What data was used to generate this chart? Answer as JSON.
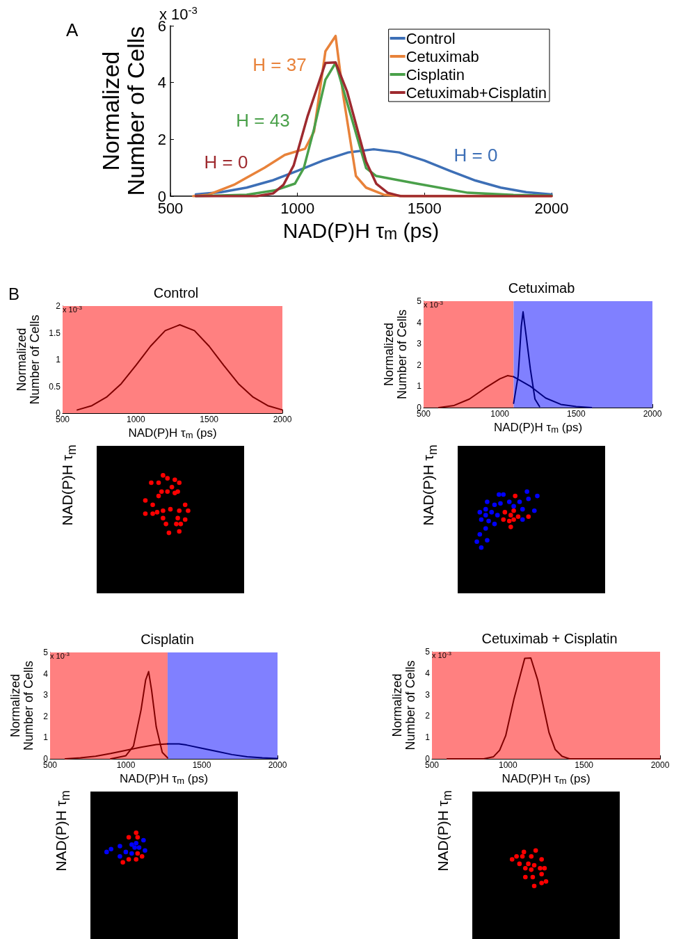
{
  "chart_data": [
    {
      "type": "line",
      "xlabel": "NAD(P)H τ$_{m}$ (ps)",
      "ylabel": "Normalized\nNumber of Cells",
      "xlim": [
        500,
        2000
      ],
      "xticks": [
        500,
        1000,
        1500,
        2000
      ],
      "ylim": [
        0,
        6
      ],
      "yticks": [
        0,
        2,
        4,
        6
      ],
      "legend": "top right",
      "annotations": [
        "A",
        "x 10$^{-3}$",
        "H = 0",
        "H = 37",
        "H = 43",
        "H = 0"
      ],
      "series": [
        {
          "name": "Control",
          "color": "#3d6fb6",
          "x": [
            600,
            700,
            800,
            900,
            1000,
            1100,
            1200,
            1300,
            1400,
            1500,
            1600,
            1700,
            1800,
            1900,
            2000
          ],
          "values": [
            0.06,
            0.14,
            0.3,
            0.55,
            0.89,
            1.25,
            1.54,
            1.65,
            1.54,
            1.25,
            0.89,
            0.55,
            0.3,
            0.14,
            0.06
          ]
        },
        {
          "name": "Cetuximab",
          "color": "#e8823a",
          "x": [
            590,
            650,
            750,
            870,
            950,
            1030,
            1065,
            1110,
            1150,
            1180,
            1230,
            1270,
            1340,
            1420,
            2000
          ],
          "values": [
            0,
            0.05,
            0.4,
            1.0,
            1.45,
            1.67,
            2.27,
            5.1,
            5.64,
            3.55,
            0.71,
            0.3,
            0.05,
            0,
            0
          ]
        },
        {
          "name": "Cisplatin",
          "color": "#4aa04a",
          "x": [
            600,
            800,
            910,
            990,
            1025,
            1065,
            1110,
            1150,
            1190,
            1270,
            1310,
            1470,
            1670,
            1850,
            2000
          ],
          "values": [
            0,
            0.05,
            0.2,
            0.44,
            0.99,
            2.36,
            4.1,
            4.69,
            3.46,
            0.99,
            0.71,
            0.44,
            0.12,
            0.04,
            0.02
          ]
        },
        {
          "name": "Cetuximab+Cisplatin",
          "color": "#9e2a2f",
          "x": [
            600,
            840,
            905,
            945,
            985,
            1040,
            1110,
            1150,
            1195,
            1270,
            1310,
            1355,
            1405,
            2000
          ],
          "values": [
            0,
            0,
            0.1,
            0.4,
            1.08,
            2.82,
            4.69,
            4.71,
            3.69,
            1.22,
            0.44,
            0.12,
            0,
            0
          ]
        }
      ]
    },
    {
      "type": "line",
      "title": "Control",
      "xlabel": "NAD(P)H τ$_{m}$ (ps)",
      "ylabel": "Normalized\nNumber of Cells",
      "xlim": [
        500,
        2000
      ],
      "xticks": [
        500,
        1000,
        1500,
        2000
      ],
      "ylim": [
        0,
        2
      ],
      "yticks": [
        0,
        0.5,
        1,
        1.5,
        2
      ],
      "annotations": [
        "B",
        "x 10$^{-3}$"
      ],
      "bands": [
        {
          "axis": "x",
          "from": 500,
          "to": 2000,
          "color": "#ff8080"
        }
      ],
      "series": [
        {
          "color": "#800000",
          "x": [
            600,
            700,
            800,
            900,
            1000,
            1100,
            1200,
            1300,
            1400,
            1500,
            1600,
            1700,
            1800,
            1900,
            2000
          ],
          "values": [
            0.06,
            0.14,
            0.3,
            0.55,
            0.89,
            1.25,
            1.54,
            1.65,
            1.54,
            1.25,
            0.89,
            0.55,
            0.3,
            0.14,
            0.06
          ]
        }
      ]
    },
    {
      "type": "other",
      "ylabel": "NAD(P)H τ$_{m}$"
    },
    {
      "type": "line",
      "title": "Cetuximab",
      "xlabel": "NAD(P)H τ$_{m}$ (ps)",
      "ylabel": "Normalized\nNumber of Cells",
      "xlim": [
        500,
        2000
      ],
      "xticks": [
        500,
        1000,
        1500,
        2000
      ],
      "ylim": [
        0,
        5
      ],
      "yticks": [
        0,
        1,
        2,
        3,
        4,
        5
      ],
      "annotations": [
        "x 10$^{-3}$"
      ],
      "bands": [
        {
          "axis": "x",
          "from": 500,
          "to": 1090,
          "color": "#ff8080"
        },
        {
          "axis": "x",
          "from": 1090,
          "to": 2000,
          "color": "#8080ff"
        }
      ],
      "series": [
        {
          "color": "#800000",
          "x": [
            600,
            700,
            800,
            900,
            1000,
            1050,
            1090
          ],
          "values": [
            0,
            0.1,
            0.4,
            0.9,
            1.35,
            1.5,
            1.45
          ]
        },
        {
          "color": "#000080",
          "x": [
            1090,
            1200,
            1300,
            1400,
            1500,
            1600
          ],
          "values": [
            1.45,
            1.0,
            0.45,
            0.15,
            0.05,
            0
          ]
        },
        {
          "color": "#000080",
          "x": [
            1090,
            1120,
            1140,
            1152,
            1170,
            1200,
            1230,
            1260
          ],
          "values": [
            0.2,
            1.5,
            3.8,
            4.5,
            3.5,
            1.8,
            0.4,
            0.05
          ]
        }
      ]
    },
    {
      "type": "other",
      "ylabel": "NAD(P)H τ$_{m}$"
    },
    {
      "type": "line",
      "title": "Cisplatin",
      "xlabel": "NAD(P)H τ$_{m}$ (ps)",
      "ylabel": "Normalized\nNumber of Cells",
      "xlim": [
        500,
        2000
      ],
      "xticks": [
        500,
        1000,
        1500,
        2000
      ],
      "ylim": [
        0,
        5
      ],
      "yticks": [
        0,
        1,
        2,
        3,
        4,
        5
      ],
      "annotations": [
        "x 10$^{-3}$"
      ],
      "bands": [
        {
          "axis": "x",
          "from": 500,
          "to": 1275,
          "color": "#ff8080"
        },
        {
          "axis": "x",
          "from": 1275,
          "to": 2000,
          "color": "#8080ff"
        }
      ],
      "series": [
        {
          "color": "#800000",
          "x": [
            900,
            1000,
            1050,
            1100,
            1130,
            1150,
            1170,
            1200,
            1240,
            1275
          ],
          "values": [
            0,
            0.15,
            0.6,
            2.3,
            3.7,
            4.1,
            3.2,
            1.5,
            0.3,
            0.05
          ]
        },
        {
          "color": "#800000",
          "x": [
            600,
            700,
            800,
            900,
            1000,
            1100,
            1200,
            1275
          ],
          "values": [
            0,
            0.05,
            0.12,
            0.25,
            0.4,
            0.55,
            0.67,
            0.7
          ]
        },
        {
          "color": "#000080",
          "x": [
            1275,
            1350,
            1400,
            1500,
            1600,
            1700,
            1800,
            1900,
            2000
          ],
          "values": [
            0.7,
            0.7,
            0.65,
            0.5,
            0.35,
            0.2,
            0.1,
            0.05,
            0.02
          ]
        }
      ]
    },
    {
      "type": "other",
      "ylabel": "NAD(P)H τ$_{m}$"
    },
    {
      "type": "line",
      "title": "Cetuximab + Cisplatin",
      "xlabel": "NAD(P)H τ$_{m}$ (ps)",
      "ylabel": "Normalized\nNumber of Cells",
      "xlim": [
        500,
        2000
      ],
      "xticks": [
        500,
        1000,
        1500,
        2000
      ],
      "ylim": [
        0,
        5
      ],
      "yticks": [
        0,
        1,
        2,
        3,
        4,
        5
      ],
      "annotations": [
        "x 10$^{-3}$"
      ],
      "bands": [
        {
          "axis": "x",
          "from": 500,
          "to": 2000,
          "color": "#ff8080"
        }
      ],
      "series": [
        {
          "color": "#800000",
          "x": [
            600,
            840,
            905,
            945,
            985,
            1040,
            1110,
            1150,
            1195,
            1270,
            1310,
            1355,
            1405,
            2000
          ],
          "values": [
            0,
            0,
            0.1,
            0.4,
            1.08,
            2.82,
            4.69,
            4.71,
            3.69,
            1.22,
            0.44,
            0.12,
            0,
            0
          ]
        }
      ]
    },
    {
      "type": "other",
      "ylabel": "NAD(P)H τ$_{m}$"
    }
  ]
}
